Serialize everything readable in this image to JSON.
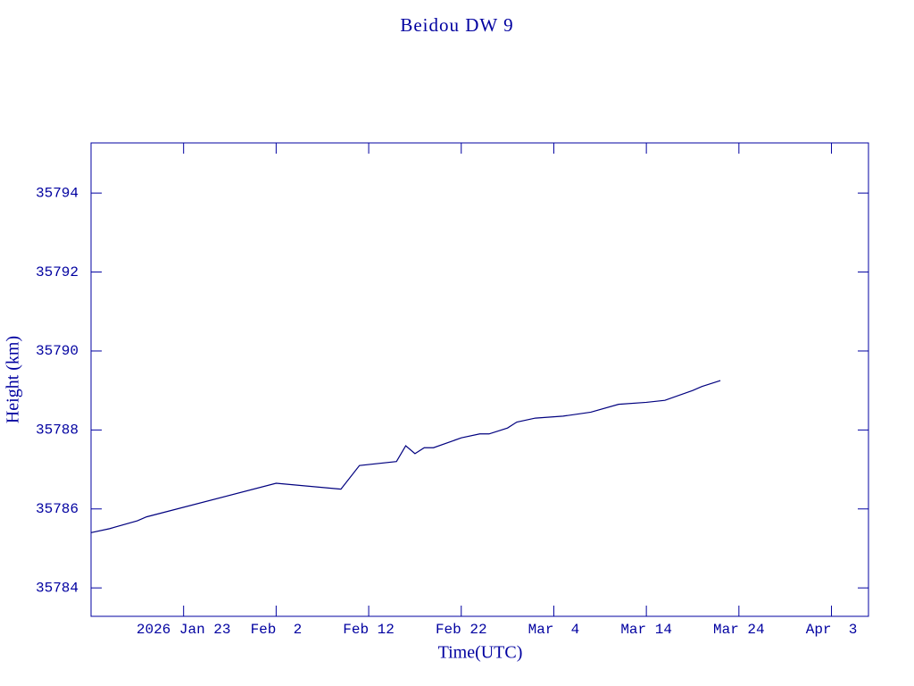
{
  "chart_data": {
    "type": "line",
    "title": "Beidou DW 9",
    "x_label": "Time(UTC)",
    "y_label": "Height (km)",
    "color": "#00007f",
    "x": [
      "2026-01-13",
      "2026-01-15",
      "2026-01-18",
      "2026-01-19",
      "2026-02-02",
      "2026-02-09",
      "2026-02-11",
      "2026-02-15",
      "2026-02-16",
      "2026-02-17",
      "2026-02-18",
      "2026-02-19",
      "2026-02-22",
      "2026-02-24",
      "2026-02-25",
      "2026-02-27",
      "2026-02-28",
      "2026-03-02",
      "2026-03-05",
      "2026-03-08",
      "2026-03-11",
      "2026-03-14",
      "2026-03-16",
      "2026-03-19",
      "2026-03-20",
      "2026-03-22"
    ],
    "values": [
      35785.4,
      35785.5,
      35785.7,
      35785.8,
      35786.65,
      35786.5,
      35787.1,
      35787.2,
      35787.6,
      35787.4,
      35787.55,
      35787.55,
      35787.8,
      35787.9,
      35787.9,
      35788.05,
      35788.2,
      35788.3,
      35788.35,
      35788.45,
      35788.65,
      35788.7,
      35788.75,
      35789.0,
      35789.1,
      35789.25
    ],
    "xlim": [
      "2026-01-13",
      "2026-04-07"
    ],
    "xticks": [
      {
        "value": "2026-01-23",
        "label": "2026 Jan 23"
      },
      {
        "value": "2026-02-02",
        "label": "Feb  2"
      },
      {
        "value": "2026-02-12",
        "label": "Feb 12"
      },
      {
        "value": "2026-02-22",
        "label": "Feb 22"
      },
      {
        "value": "2026-03-04",
        "label": "Mar  4"
      },
      {
        "value": "2026-03-14",
        "label": "Mar 14"
      },
      {
        "value": "2026-03-24",
        "label": "Mar 24"
      },
      {
        "value": "2026-04-03",
        "label": "Apr  3"
      }
    ],
    "ylim": [
      35783.28,
      35795.27
    ],
    "yticks": [
      35784,
      35786,
      35788,
      35790,
      35792,
      35794
    ]
  }
}
